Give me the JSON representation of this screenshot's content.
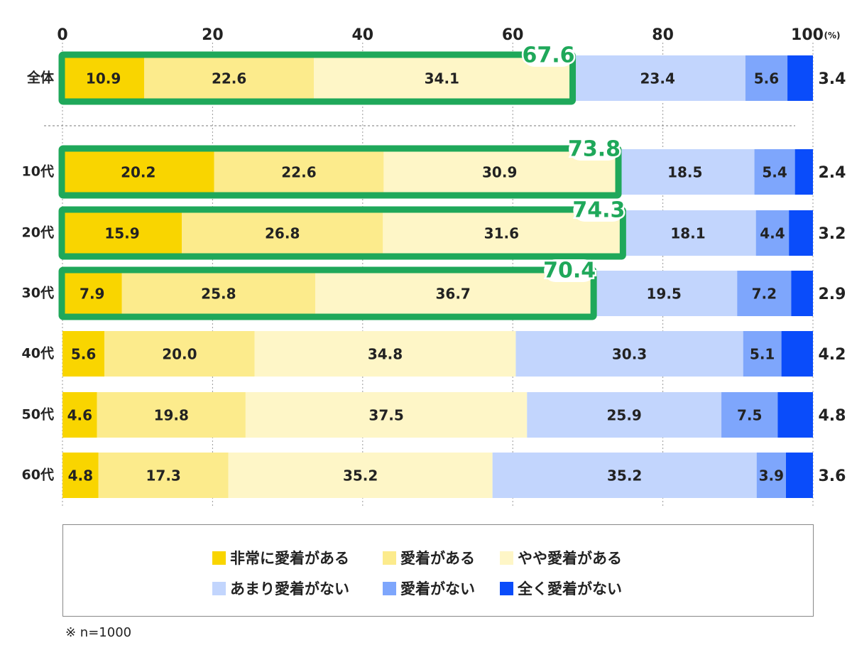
{
  "chart_data": {
    "type": "bar",
    "orientation": "horizontal",
    "stacked": true,
    "x_ticks": [
      "0",
      "20",
      "40",
      "60",
      "80",
      "100"
    ],
    "x_unit": "(%)",
    "xlim": [
      0,
      100
    ],
    "grid": true,
    "categories": [
      "全体",
      "10代",
      "20代",
      "30代",
      "40代",
      "50代",
      "60代"
    ],
    "series": [
      {
        "name": "非常に愛着がある",
        "color": "#F9D500",
        "values": [
          10.9,
          20.2,
          15.9,
          7.9,
          5.6,
          4.6,
          4.8
        ]
      },
      {
        "name": "愛着がある",
        "color": "#FCEB8C",
        "values": [
          22.6,
          22.6,
          26.8,
          25.8,
          20.0,
          19.8,
          17.3
        ]
      },
      {
        "name": "やや愛着がある",
        "color": "#FEF6C7",
        "values": [
          34.1,
          30.9,
          31.6,
          36.7,
          34.8,
          37.5,
          35.2
        ]
      },
      {
        "name": "あまり愛着がない",
        "color": "#C2D5FD",
        "values": [
          23.4,
          18.5,
          18.1,
          19.5,
          30.3,
          25.9,
          35.2
        ]
      },
      {
        "name": "愛着がない",
        "color": "#7EA6FC",
        "values": [
          5.6,
          5.4,
          4.4,
          7.2,
          5.1,
          7.5,
          3.9
        ]
      },
      {
        "name": "全く愛着がない",
        "color": "#0A4CFA",
        "values": [
          3.4,
          2.4,
          3.2,
          2.9,
          4.2,
          4.8,
          3.6
        ]
      }
    ],
    "labels": [
      [
        "10.9",
        "22.6",
        "34.1",
        "23.4",
        "5.6",
        "3.4"
      ],
      [
        "20.2",
        "22.6",
        "30.9",
        "18.5",
        "5.4",
        "2.4"
      ],
      [
        "15.9",
        "26.8",
        "31.6",
        "18.1",
        "4.4",
        "3.2"
      ],
      [
        "7.9",
        "25.8",
        "36.7",
        "19.5",
        "7.2",
        "2.9"
      ],
      [
        "5.6",
        "20.0",
        "34.8",
        "30.3",
        "5.1",
        "4.2"
      ],
      [
        "4.6",
        "19.8",
        "37.5",
        "25.9",
        "7.5",
        "4.8"
      ],
      [
        "4.8",
        "17.3",
        "35.2",
        "35.2",
        "3.9",
        "3.6"
      ]
    ],
    "highlight": {
      "color": "#1FA85A",
      "rows": [
        {
          "category": "全体",
          "total": "67.6"
        },
        {
          "category": "10代",
          "total": "73.8"
        },
        {
          "category": "20代",
          "total": "74.3"
        },
        {
          "category": "30代",
          "total": "70.4"
        }
      ]
    }
  },
  "legend": {
    "items": [
      {
        "label": "非常に愛着がある",
        "color": "#F9D500"
      },
      {
        "label": "愛着がある",
        "color": "#FCEB8C"
      },
      {
        "label": "やや愛着がある",
        "color": "#FEF6C7"
      },
      {
        "label": "あまり愛着がない",
        "color": "#C2D5FD"
      },
      {
        "label": "愛着がない",
        "color": "#7EA6FC"
      },
      {
        "label": "全く愛着がない",
        "color": "#0A4CFA"
      }
    ]
  },
  "footnote": "※ n=1000"
}
